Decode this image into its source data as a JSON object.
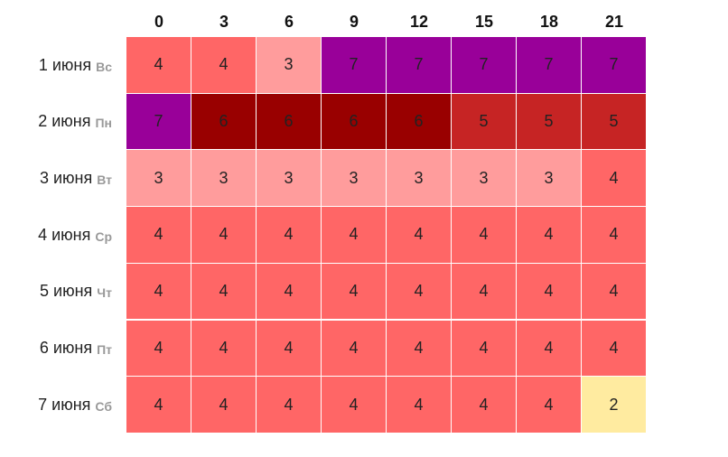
{
  "chart_data": {
    "type": "heatmap",
    "columns": [
      "0",
      "3",
      "6",
      "9",
      "12",
      "15",
      "18",
      "21"
    ],
    "rows": [
      {
        "date": "1 июня",
        "dow": "Вс",
        "values": [
          4,
          4,
          3,
          7,
          7,
          7,
          7,
          7
        ]
      },
      {
        "date": "2 июня",
        "dow": "Пн",
        "values": [
          7,
          6,
          6,
          6,
          6,
          5,
          5,
          5
        ]
      },
      {
        "date": "3 июня",
        "dow": "Вт",
        "values": [
          3,
          3,
          3,
          3,
          3,
          3,
          3,
          4
        ]
      },
      {
        "date": "4 июня",
        "dow": "Ср",
        "values": [
          4,
          4,
          4,
          4,
          4,
          4,
          4,
          4
        ]
      },
      {
        "date": "5 июня",
        "dow": "Чт",
        "values": [
          4,
          4,
          4,
          4,
          4,
          4,
          4,
          4
        ]
      },
      {
        "date": "6 июня",
        "dow": "Пт",
        "values": [
          4,
          4,
          4,
          4,
          4,
          4,
          4,
          4
        ]
      },
      {
        "date": "7 июня",
        "dow": "Сб",
        "values": [
          4,
          4,
          4,
          4,
          4,
          4,
          4,
          2
        ]
      }
    ],
    "colors": {
      "2": "#ffeba0",
      "3": "#ff9c9c",
      "4": "#ff6666",
      "5": "#c62424",
      "6": "#990000",
      "7": "#990099"
    }
  }
}
